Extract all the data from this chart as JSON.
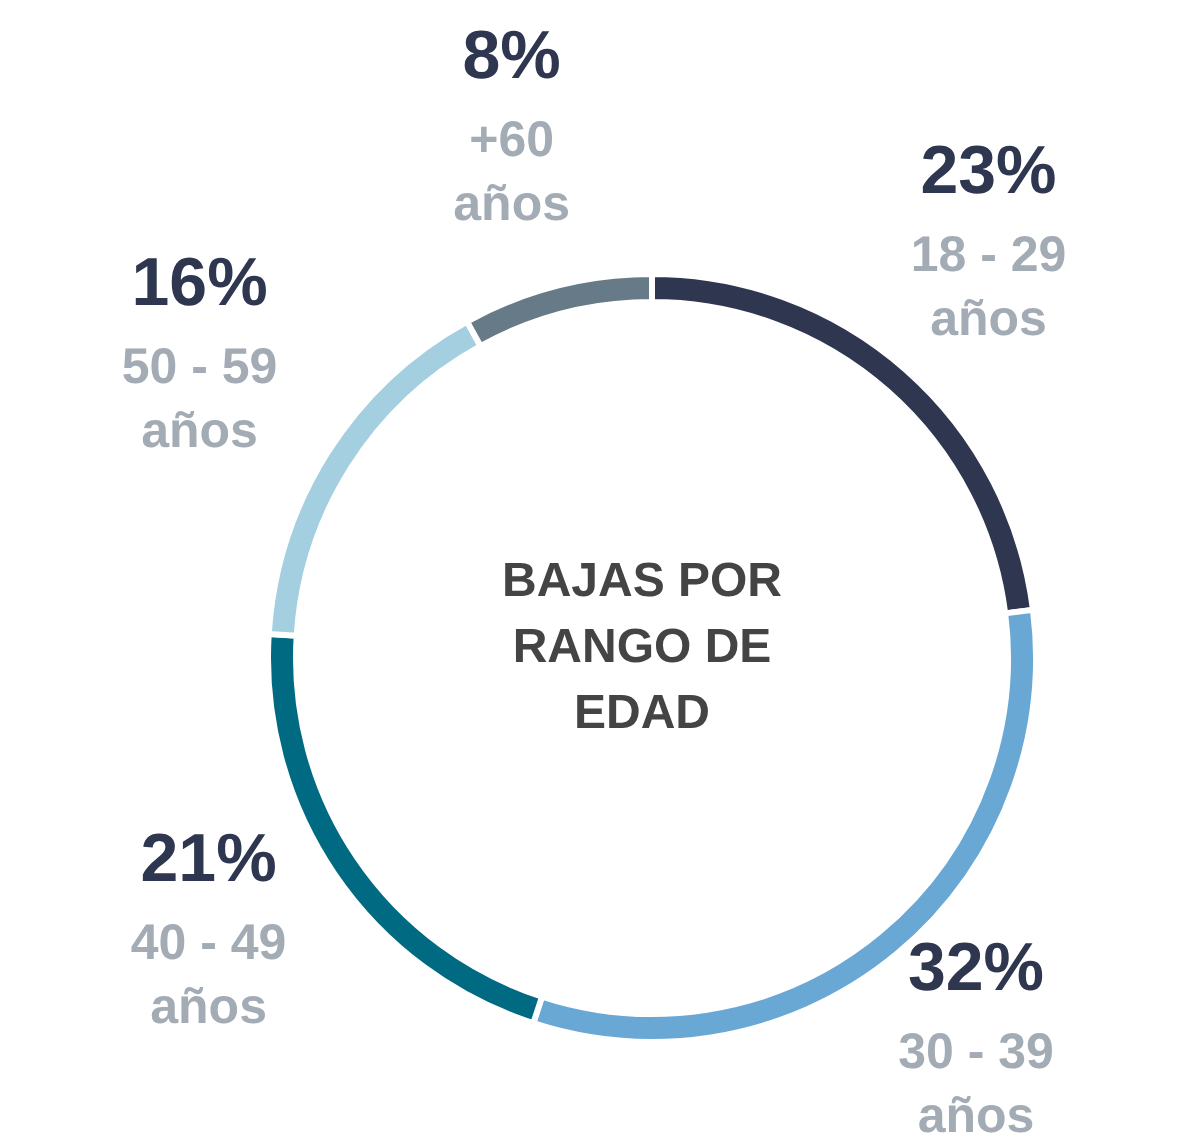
{
  "chart_data": {
    "type": "donut",
    "title": "BAJAS POR RANGO DE EDAD",
    "categories": [
      "18 - 29 años",
      "30 - 39 años",
      "40 - 49 años",
      "50 - 59 años",
      "+60 años"
    ],
    "values": [
      23,
      32,
      21,
      16,
      8
    ],
    "value_labels": [
      "23%",
      "32%",
      "21%",
      "16%",
      "8%"
    ],
    "colors": [
      "#2e3650",
      "#69a7d4",
      "#006a82",
      "#a3cfe1",
      "#667a88"
    ],
    "legend": false
  }
}
